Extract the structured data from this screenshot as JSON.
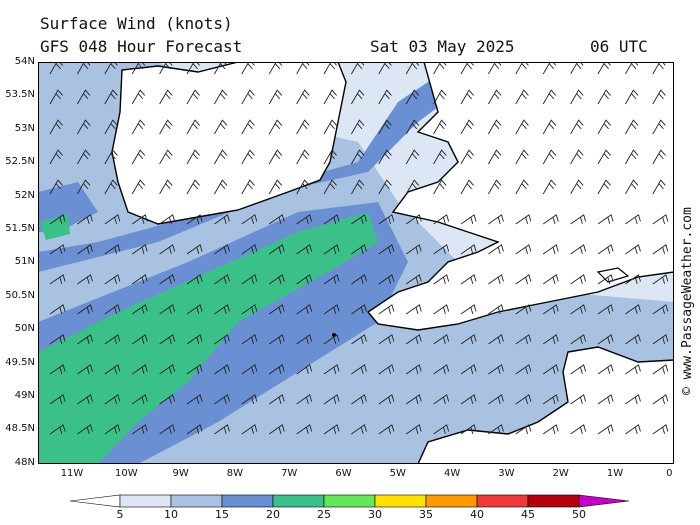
{
  "header": {
    "title": "Surface Wind (knots)",
    "forecast": "GFS 048 Hour Forecast",
    "date": "Sat 03 May 2025",
    "time": "06 UTC"
  },
  "copyright": "© www.PassageWeather.com",
  "lat_labels": [
    "54N",
    "53.5N",
    "53N",
    "52.5N",
    "52N",
    "51.5N",
    "51N",
    "50.5N",
    "50N",
    "49.5N",
    "49N",
    "48.5N",
    "48N"
  ],
  "lon_labels": [
    "11W",
    "10W",
    "9W",
    "8W",
    "7W",
    "6W",
    "5W",
    "4W",
    "3W",
    "2W",
    "1W",
    "0"
  ],
  "legend": {
    "labels": [
      "5",
      "10",
      "15",
      "20",
      "25",
      "30",
      "35",
      "40",
      "45",
      "50"
    ],
    "colors": [
      "#ffffff",
      "#dde6f4",
      "#a9c2e2",
      "#6b8fd3",
      "#3cc08a",
      "#66e65a",
      "#ffe100",
      "#ff9a00",
      "#ee3a3a",
      "#b5000e",
      "#c400c4"
    ]
  },
  "colors": {
    "land": "#ffffff",
    "coast": "#000000",
    "barb": "#222222",
    "band_lt": "#dde6f4",
    "band_10": "#a9c2e2",
    "band_15": "#6b8fd3",
    "band_20": "#3cc08a"
  }
}
